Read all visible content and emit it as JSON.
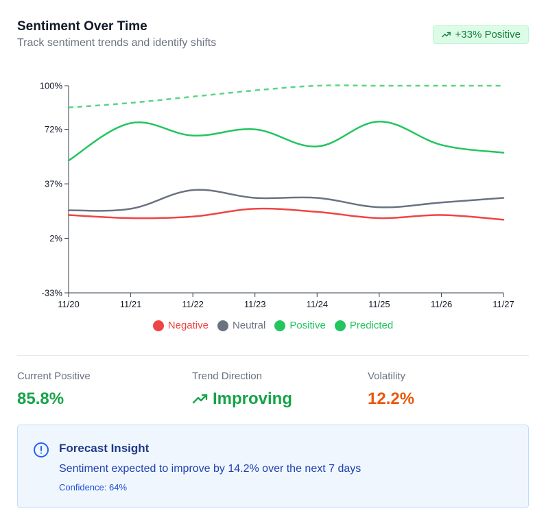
{
  "header": {
    "title": "Sentiment Over Time",
    "subtitle": "Track sentiment trends and identify shifts",
    "badge": "+33% Positive",
    "badge_icon": "trending-up-icon"
  },
  "chart_data": {
    "type": "line",
    "title": "",
    "xlabel": "",
    "ylabel": "",
    "x": [
      "11/20",
      "11/21",
      "11/22",
      "11/23",
      "11/24",
      "11/25",
      "11/26",
      "11/27"
    ],
    "y_ticks": [
      "100%",
      "72%",
      "37%",
      "2%",
      "-33%"
    ],
    "ylim": [
      -33,
      100
    ],
    "grid": false,
    "legend_position": "bottom-center",
    "series": [
      {
        "name": "Negative",
        "color": "#ef4444",
        "style": "solid",
        "values": [
          17,
          15,
          16,
          21,
          19,
          15,
          17,
          14
        ]
      },
      {
        "name": "Neutral",
        "color": "#6b7280",
        "style": "solid",
        "values": [
          20,
          21,
          33,
          28,
          28,
          22,
          25,
          28
        ]
      },
      {
        "name": "Positive",
        "color": "#22c55e",
        "style": "solid",
        "values": [
          52,
          76,
          68,
          72,
          61,
          77,
          62,
          57
        ]
      },
      {
        "name": "Predicted",
        "color": "#22c55e",
        "style": "dashed",
        "values": [
          86,
          89,
          93,
          97,
          100,
          100,
          100,
          100
        ]
      }
    ]
  },
  "stats": {
    "current_positive": {
      "label": "Current Positive",
      "value": "85.8%",
      "color": "#16a34a"
    },
    "trend_direction": {
      "label": "Trend Direction",
      "value": "Improving",
      "color": "#16a34a",
      "icon": "trending-up-icon"
    },
    "volatility": {
      "label": "Volatility",
      "value": "12.2%",
      "color": "#ea580c"
    }
  },
  "insight": {
    "icon": "info-circle-icon",
    "title": "Forecast Insight",
    "text": "Sentiment expected to improve by 14.2% over the next 7 days",
    "confidence": "Confidence: 64%"
  }
}
